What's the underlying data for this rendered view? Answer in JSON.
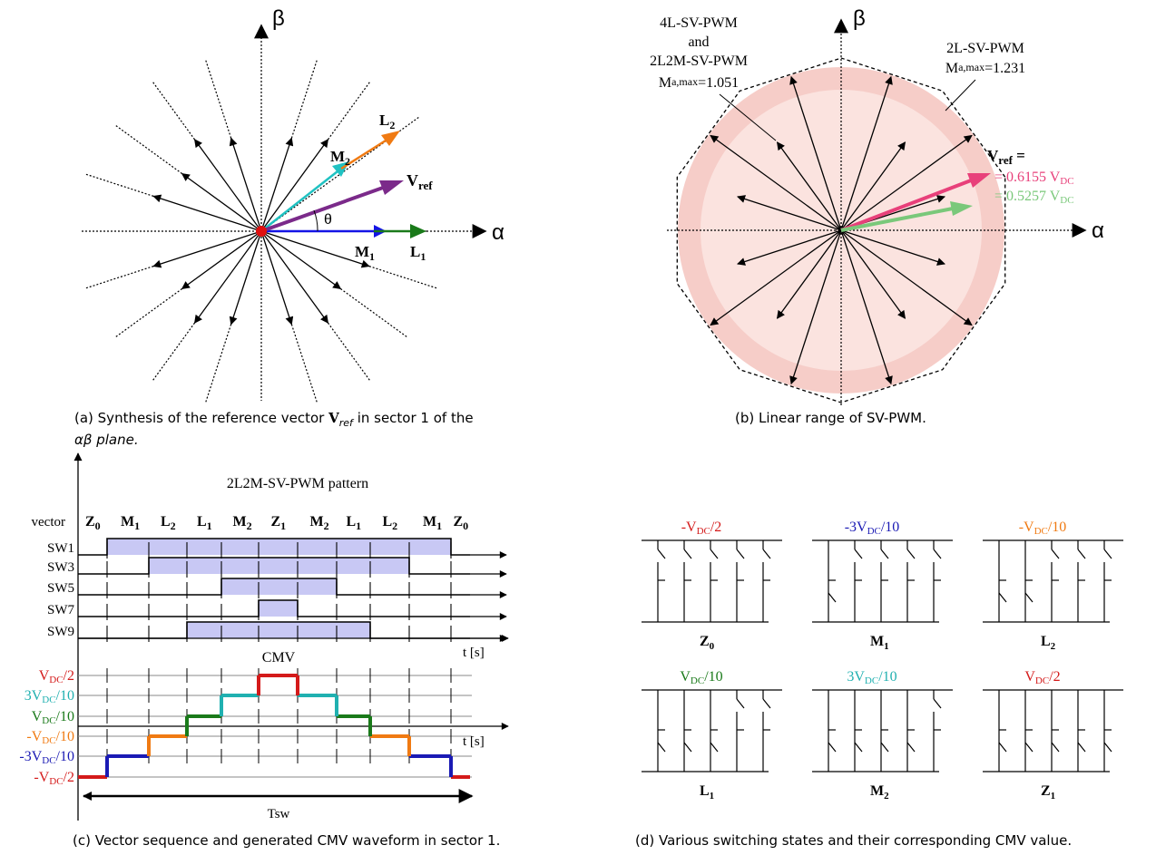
{
  "panel_a": {
    "beta": "β",
    "alpha": "α",
    "theta": "θ",
    "vref": "V",
    "vref_sub": "ref",
    "m1": "M",
    "m1_sub": "1",
    "m2": "M",
    "m2_sub": "2",
    "l1": "L",
    "l1_sub": "1",
    "l2": "L",
    "l2_sub": "2",
    "caption_pre": "(a)  Synthesis of the reference vector ",
    "caption_v": "V",
    "caption_sub": "ref",
    "caption_post": " in sector 1 of the",
    "caption_line2": "αβ plane.",
    "colors": {
      "vref": "#7b2a8a",
      "m1": "#1414e6",
      "l1": "#1a7a1a",
      "m2": "#20c2c2",
      "l2": "#f07a12",
      "origin": "#e01010"
    }
  },
  "panel_b": {
    "beta": "β",
    "alpha": "α",
    "label_4l_1": "4L-SV-PWM",
    "label_4l_2": "and",
    "label_4l_3": "2L2M-SV-PWM",
    "label_4l_m": "M",
    "label_4l_msub": "a,max",
    "label_4l_val": "=1.051",
    "label_2l_1": "2L-SV-PWM",
    "label_2l_m": "M",
    "label_2l_msub": "a,max",
    "label_2l_val": "=1.231",
    "vref": "V",
    "vref_sub": "ref",
    "vref_eq": " =",
    "val1": "= 0.6155 V",
    "val1_sub": "DC",
    "val2": "= 0.5257 V",
    "val2_sub": "DC",
    "caption": "(b)  Linear range of SV-PWM.",
    "colors": {
      "outer_circle": "#f6cdc8",
      "inner_circle": "#fbe3df",
      "val1": "#e8407a",
      "val2": "#7ac87a"
    }
  },
  "panel_c": {
    "title": "2L2M-SV-PWM pattern",
    "vector_label": "vector",
    "sequence": [
      {
        "m": "Z",
        "s": "0"
      },
      {
        "m": "M",
        "s": "1"
      },
      {
        "m": "L",
        "s": "2"
      },
      {
        "m": "L",
        "s": "1"
      },
      {
        "m": "M",
        "s": "2"
      },
      {
        "m": "Z",
        "s": "1"
      },
      {
        "m": "M",
        "s": "2"
      },
      {
        "m": "L",
        "s": "1"
      },
      {
        "m": "L",
        "s": "2"
      },
      {
        "m": "M",
        "s": "1"
      },
      {
        "m": "Z",
        "s": "0"
      }
    ],
    "switches": [
      "SW1",
      "SW3",
      "SW5",
      "SW7",
      "SW9"
    ],
    "t_label": "t [s]",
    "cmv_label": "CMV",
    "levels": [
      {
        "pre": "V",
        "sub": "DC",
        "post": "/2",
        "color": "#d41a1a"
      },
      {
        "pre": "3V",
        "sub": "DC",
        "post": "/10",
        "color": "#20b0b0"
      },
      {
        "pre": "V",
        "sub": "DC",
        "post": "/10",
        "color": "#1a7a1a"
      },
      {
        "pre": "-V",
        "sub": "DC",
        "post": "/10",
        "color": "#f07a12"
      },
      {
        "pre": "-3V",
        "sub": "DC",
        "post": "/10",
        "color": "#1a1ab4"
      },
      {
        "pre": "-V",
        "sub": "DC",
        "post": "/2",
        "color": "#d41a1a"
      }
    ],
    "tsw": "Tsw",
    "caption": "(c)  Vector sequence and generated CMV waveform in sector 1.",
    "pulse_color": "#c8c8f4"
  },
  "panel_d": {
    "states": [
      {
        "top_pre": "-V",
        "top_sub": "DC",
        "top_post": "/2",
        "color": "#d41a1a",
        "name": "Z",
        "name_sub": "0"
      },
      {
        "top_pre": "-3V",
        "top_sub": "DC",
        "top_post": "/10",
        "color": "#1a1ab4",
        "name": "M",
        "name_sub": "1"
      },
      {
        "top_pre": "-V",
        "top_sub": "DC",
        "top_post": "/10",
        "color": "#f07a12",
        "name": "L",
        "name_sub": "2"
      },
      {
        "top_pre": "V",
        "top_sub": "DC",
        "top_post": "/10",
        "color": "#1a7a1a",
        "name": "L",
        "name_sub": "1"
      },
      {
        "top_pre": "3V",
        "top_sub": "DC",
        "top_post": "/10",
        "color": "#20b0b0",
        "name": "M",
        "name_sub": "2"
      },
      {
        "top_pre": "V",
        "top_sub": "DC",
        "top_post": "/2",
        "color": "#d41a1a",
        "name": "Z",
        "name_sub": "1"
      }
    ],
    "caption": "(d)  Various switching states and their corresponding CMV value."
  }
}
